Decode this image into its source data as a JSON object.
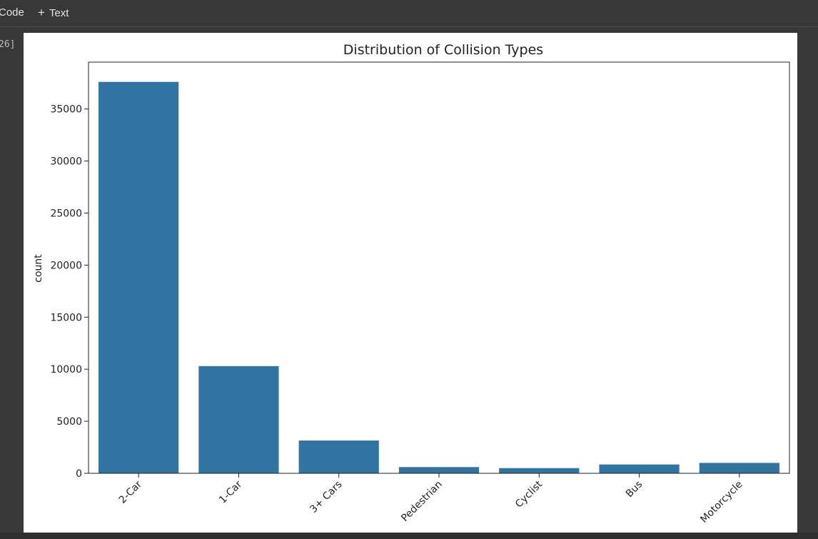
{
  "toolbar": {
    "code_label": "Code",
    "text_label": "Text",
    "plus_glyph": "+"
  },
  "cell": {
    "execution_count": "26]"
  },
  "colors": {
    "bar": "#3274a1",
    "background": "#383838",
    "plot_bg": "#ffffff"
  },
  "chart_data": {
    "type": "bar",
    "title": "Distribution of Collision Types",
    "xlabel": "",
    "ylabel": "count",
    "categories": [
      "2-Car",
      "1-Car",
      "3+ Cars",
      "Pedestrian",
      "Cyclist",
      "Bus",
      "Motorcycle"
    ],
    "values": [
      37600,
      10300,
      3150,
      600,
      500,
      850,
      1000
    ],
    "yticks": [
      0,
      5000,
      10000,
      15000,
      20000,
      25000,
      30000,
      35000
    ],
    "ylim": [
      0,
      39500
    ],
    "grid": false,
    "x_tick_rotation": 45
  }
}
